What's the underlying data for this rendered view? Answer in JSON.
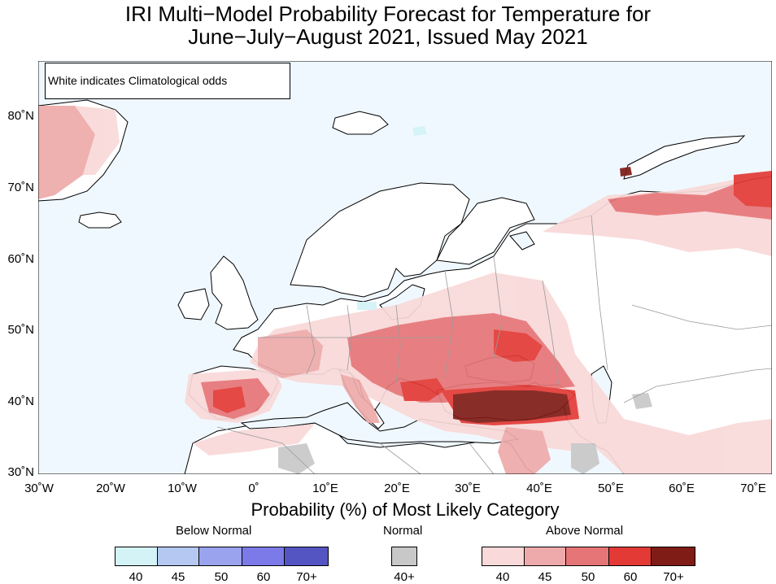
{
  "title": {
    "line1": "IRI Multi−Model Probability Forecast for Temperature for",
    "line2": "June−July−August 2021, Issued May 2021"
  },
  "map": {
    "note": "White indicates Climatological odds",
    "lat_labels": [
      "80˚N",
      "70˚N",
      "60˚N",
      "50˚N",
      "40˚N",
      "30˚N"
    ],
    "lon_labels": [
      "30˚W",
      "20˚W",
      "10˚W",
      "0˚",
      "10˚E",
      "20˚E",
      "30˚E",
      "40˚E",
      "50˚E",
      "60˚E",
      "70˚E"
    ],
    "colors": {
      "ocean": "#f0f8ff",
      "land": "#ffffff",
      "coast": "#000000",
      "border": "#9a9a9a"
    },
    "anomaly_regions": [
      {
        "name": "iberia",
        "category": "above",
        "level": "60"
      },
      {
        "name": "eastern-europe",
        "category": "above",
        "level": "50"
      },
      {
        "name": "turkey",
        "category": "above",
        "level": "70+"
      },
      {
        "name": "black-sea-north",
        "category": "above",
        "level": "60"
      },
      {
        "name": "greenland",
        "category": "above",
        "level": "45"
      },
      {
        "name": "northern-russia",
        "category": "above",
        "level": "60"
      },
      {
        "name": "arabia",
        "category": "normal",
        "level": "40+"
      }
    ]
  },
  "legend": {
    "heading": "Probability (%) of Most Likely Category",
    "below": {
      "label": "Below Normal",
      "colors": [
        "#d3f3f7",
        "#b4c8f1",
        "#9aa3ed",
        "#7b7ae8",
        "#5454c2"
      ],
      "ticks": [
        "40",
        "45",
        "50",
        "60",
        "70+"
      ]
    },
    "normal": {
      "label": "Normal",
      "colors": [
        "#c8c8c8"
      ],
      "ticks": [
        "40+"
      ]
    },
    "above": {
      "label": "Above Normal",
      "colors": [
        "#f9d9d9",
        "#eeaaaa",
        "#e67578",
        "#e33a36",
        "#7f1c16"
      ],
      "ticks": [
        "40",
        "45",
        "50",
        "60",
        "70+"
      ]
    }
  }
}
